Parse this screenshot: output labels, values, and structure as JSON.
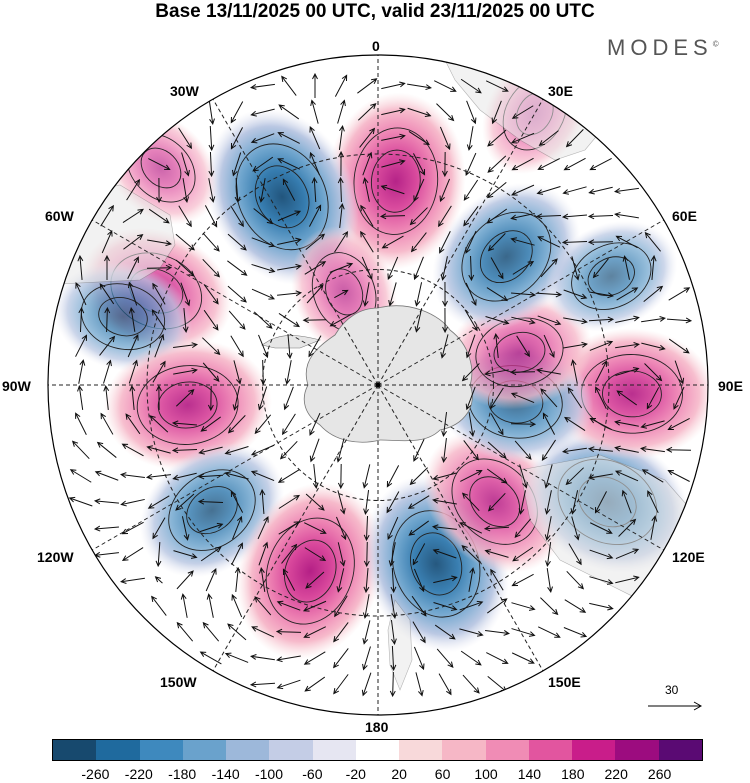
{
  "title": "Base 13/11/2025 00 UTC, valid 23/11/2025 00 UTC",
  "brand": {
    "name": "MODES",
    "mark": "©"
  },
  "longitude_labels": {
    "top": "0",
    "bottom": "180",
    "left": "90W",
    "right": "90E",
    "tl1": "30W",
    "tl2": "60W",
    "tr1": "30E",
    "tr2": "60E",
    "bl1": "120W",
    "bl2": "150W",
    "br1": "120E",
    "br2": "150E"
  },
  "reference_vector": {
    "label": "30"
  },
  "colorbar": {
    "colors": [
      "#17496e",
      "#1f6a9e",
      "#3e89be",
      "#6aa2cc",
      "#9db8da",
      "#c4cde6",
      "#e6e6f2",
      "#ffffff",
      "#f8d9da",
      "#f6b7c6",
      "#f08cb5",
      "#e2559f",
      "#c91d8a",
      "#9c0c7f",
      "#5a0a73"
    ],
    "ticks": [
      "-260",
      "-220",
      "-180",
      "-140",
      "-100",
      "-60",
      "-20",
      "20",
      "60",
      "100",
      "140",
      "180",
      "220",
      "260"
    ]
  },
  "anomalies": [
    {
      "name": "anomaly-positive-0E",
      "angle": 5,
      "r": 0.62,
      "value": 220
    },
    {
      "name": "anomaly-negative-28W",
      "angle": -27,
      "r": 0.64,
      "value": -240
    },
    {
      "name": "anomaly-positive-60W",
      "angle": -67,
      "r": 0.73,
      "value": 150
    },
    {
      "name": "anomaly-negative-75W",
      "angle": -75,
      "r": 0.8,
      "value": -100
    },
    {
      "name": "anomaly-positive-95W",
      "angle": -96,
      "r": 0.58,
      "value": 190
    },
    {
      "name": "anomaly-negative-125W",
      "angle": -127,
      "r": 0.63,
      "value": -150
    },
    {
      "name": "anomaly-positive-158W",
      "angle": -160,
      "r": 0.6,
      "value": 230
    },
    {
      "name": "anomaly-negative-165E",
      "angle": 162,
      "r": 0.57,
      "value": -230
    },
    {
      "name": "anomaly-positive-135E",
      "angle": 135,
      "r": 0.5,
      "value": 160
    },
    {
      "name": "anomaly-negative-120E",
      "angle": 117,
      "r": 0.78,
      "value": -200
    },
    {
      "name": "anomaly-positive-95E",
      "angle": 92,
      "r": 0.77,
      "value": 190
    },
    {
      "name": "anomaly-negative-95E",
      "angle": 97,
      "r": 0.42,
      "value": -150
    },
    {
      "name": "anomaly-positive-80E",
      "angle": 77,
      "r": 0.44,
      "value": 120
    },
    {
      "name": "anomaly-negative-45E",
      "angle": 45,
      "r": 0.55,
      "value": -180
    },
    {
      "name": "anomaly-negative-60E",
      "angle": 65,
      "r": 0.78,
      "value": -90
    },
    {
      "name": "anomaly-positive-20W",
      "angle": -20,
      "r": 0.3,
      "value": 80
    },
    {
      "name": "anomaly-positive-30E",
      "angle": 30,
      "r": 0.95,
      "value": 60
    },
    {
      "name": "anomaly-positive-45W",
      "angle": -45,
      "r": 0.93,
      "value": 60
    }
  ]
}
